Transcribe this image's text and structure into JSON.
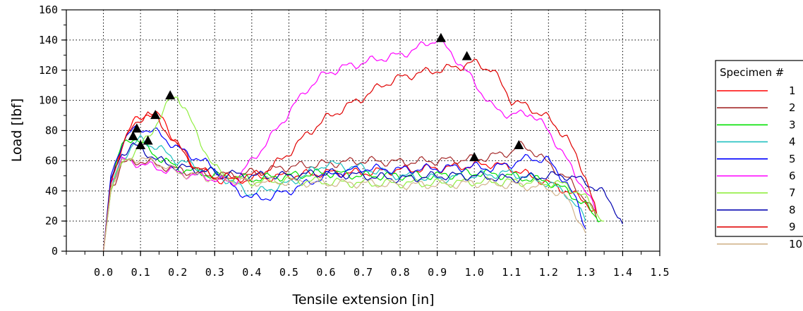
{
  "chart_data": {
    "type": "line",
    "title": "",
    "xlabel": "Tensile extension [in]",
    "ylabel": "Load [lbf]",
    "xlim": [
      -0.1,
      1.5
    ],
    "ylim": [
      0,
      160
    ],
    "x_ticks": [
      "0.0",
      "0.1",
      "0.2",
      "0.3",
      "0.4",
      "0.5",
      "0.6",
      "0.7",
      "0.8",
      "0.9",
      "1.0",
      "1.1",
      "1.2",
      "1.3",
      "1.4",
      "1.5"
    ],
    "y_ticks": [
      "0",
      "20",
      "40",
      "60",
      "80",
      "100",
      "120",
      "140",
      "160"
    ],
    "grid": true,
    "legend": {
      "title": "Specimen #",
      "position": "right"
    },
    "series": [
      {
        "name": "1",
        "color": "#ff0000",
        "points": [
          [
            0,
            0
          ],
          [
            0.02,
            45
          ],
          [
            0.05,
            72
          ],
          [
            0.08,
            85
          ],
          [
            0.12,
            92
          ],
          [
            0.16,
            88
          ],
          [
            0.2,
            70
          ],
          [
            0.25,
            55
          ],
          [
            0.3,
            48
          ],
          [
            0.35,
            47
          ],
          [
            0.4,
            48
          ],
          [
            0.5,
            50
          ],
          [
            0.6,
            52
          ],
          [
            0.7,
            52
          ],
          [
            0.8,
            54
          ],
          [
            0.9,
            55
          ],
          [
            1.0,
            57
          ],
          [
            1.05,
            58
          ],
          [
            1.1,
            55
          ],
          [
            1.15,
            50
          ],
          [
            1.2,
            45
          ],
          [
            1.25,
            40
          ],
          [
            1.3,
            33
          ],
          [
            1.33,
            25
          ]
        ],
        "break": [
          1.0,
          62
        ]
      },
      {
        "name": "2",
        "color": "#a52a2a",
        "points": [
          [
            0,
            0
          ],
          [
            0.02,
            40
          ],
          [
            0.05,
            58
          ],
          [
            0.1,
            60
          ],
          [
            0.15,
            57
          ],
          [
            0.2,
            54
          ],
          [
            0.3,
            50
          ],
          [
            0.4,
            52
          ],
          [
            0.5,
            56
          ],
          [
            0.6,
            58
          ],
          [
            0.7,
            60
          ],
          [
            0.8,
            59
          ],
          [
            0.9,
            60
          ],
          [
            1.0,
            61
          ],
          [
            1.05,
            63
          ],
          [
            1.1,
            66
          ],
          [
            1.12,
            70
          ],
          [
            1.15,
            68
          ],
          [
            1.2,
            58
          ],
          [
            1.25,
            48
          ],
          [
            1.3,
            35
          ],
          [
            1.33,
            22
          ]
        ],
        "break": [
          1.12,
          70
        ]
      },
      {
        "name": "3",
        "color": "#00e000",
        "points": [
          [
            0,
            0
          ],
          [
            0.02,
            45
          ],
          [
            0.05,
            70
          ],
          [
            0.08,
            76
          ],
          [
            0.1,
            72
          ],
          [
            0.15,
            62
          ],
          [
            0.2,
            55
          ],
          [
            0.3,
            50
          ],
          [
            0.4,
            48
          ],
          [
            0.5,
            50
          ],
          [
            0.6,
            52
          ],
          [
            0.7,
            50
          ],
          [
            0.8,
            50
          ],
          [
            0.9,
            50
          ],
          [
            1.0,
            52
          ],
          [
            1.1,
            50
          ],
          [
            1.2,
            46
          ],
          [
            1.25,
            40
          ],
          [
            1.3,
            30
          ],
          [
            1.34,
            20
          ]
        ],
        "break": [
          0.1,
          70
        ]
      },
      {
        "name": "4",
        "color": "#20c0c0",
        "points": [
          [
            0,
            0
          ],
          [
            0.02,
            42
          ],
          [
            0.05,
            62
          ],
          [
            0.08,
            70
          ],
          [
            0.1,
            74
          ],
          [
            0.15,
            68
          ],
          [
            0.2,
            60
          ],
          [
            0.3,
            52
          ],
          [
            0.4,
            38
          ],
          [
            0.5,
            45
          ],
          [
            0.6,
            58
          ],
          [
            0.7,
            55
          ],
          [
            0.8,
            50
          ],
          [
            0.9,
            48
          ],
          [
            1.0,
            50
          ],
          [
            1.1,
            52
          ],
          [
            1.2,
            45
          ],
          [
            1.25,
            38
          ],
          [
            1.28,
            28
          ],
          [
            1.3,
            20
          ]
        ],
        "break": [
          0.12,
          73
        ]
      },
      {
        "name": "5",
        "color": "#0000ff",
        "points": [
          [
            0,
            0
          ],
          [
            0.02,
            50
          ],
          [
            0.05,
            72
          ],
          [
            0.08,
            80
          ],
          [
            0.1,
            82
          ],
          [
            0.15,
            78
          ],
          [
            0.2,
            68
          ],
          [
            0.25,
            62
          ],
          [
            0.3,
            55
          ],
          [
            0.35,
            42
          ],
          [
            0.4,
            35
          ],
          [
            0.45,
            36
          ],
          [
            0.5,
            40
          ],
          [
            0.6,
            50
          ],
          [
            0.7,
            55
          ],
          [
            0.8,
            54
          ],
          [
            0.9,
            55
          ],
          [
            1.0,
            56
          ],
          [
            1.05,
            55
          ],
          [
            1.1,
            58
          ],
          [
            1.15,
            62
          ],
          [
            1.2,
            60
          ],
          [
            1.25,
            45
          ],
          [
            1.28,
            30
          ],
          [
            1.3,
            15
          ]
        ],
        "break": [
          0.09,
          81
        ]
      },
      {
        "name": "6",
        "color": "#ff00ff",
        "points": [
          [
            0,
            0
          ],
          [
            0.02,
            45
          ],
          [
            0.05,
            60
          ],
          [
            0.1,
            58
          ],
          [
            0.15,
            55
          ],
          [
            0.2,
            52
          ],
          [
            0.3,
            48
          ],
          [
            0.35,
            45
          ],
          [
            0.4,
            60
          ],
          [
            0.45,
            75
          ],
          [
            0.5,
            92
          ],
          [
            0.55,
            108
          ],
          [
            0.6,
            118
          ],
          [
            0.65,
            122
          ],
          [
            0.7,
            125
          ],
          [
            0.75,
            128
          ],
          [
            0.8,
            130
          ],
          [
            0.85,
            135
          ],
          [
            0.9,
            141
          ],
          [
            0.95,
            128
          ],
          [
            1.0,
            112
          ],
          [
            1.05,
            95
          ],
          [
            1.1,
            90
          ],
          [
            1.15,
            92
          ],
          [
            1.2,
            80
          ],
          [
            1.25,
            60
          ],
          [
            1.3,
            40
          ],
          [
            1.33,
            25
          ]
        ],
        "break": [
          0.91,
          141
        ]
      },
      {
        "name": "7",
        "color": "#90ee40",
        "points": [
          [
            0,
            0
          ],
          [
            0.02,
            40
          ],
          [
            0.05,
            58
          ],
          [
            0.08,
            65
          ],
          [
            0.12,
            75
          ],
          [
            0.15,
            88
          ],
          [
            0.18,
            100
          ],
          [
            0.2,
            103
          ],
          [
            0.22,
            95
          ],
          [
            0.25,
            78
          ],
          [
            0.3,
            55
          ],
          [
            0.35,
            48
          ],
          [
            0.4,
            46
          ],
          [
            0.5,
            47
          ],
          [
            0.6,
            46
          ],
          [
            0.7,
            45
          ],
          [
            0.8,
            45
          ],
          [
            0.9,
            45
          ],
          [
            1.0,
            46
          ],
          [
            1.1,
            46
          ],
          [
            1.2,
            45
          ],
          [
            1.25,
            44
          ],
          [
            1.3,
            35
          ],
          [
            1.35,
            20
          ]
        ],
        "break": [
          0.18,
          103
        ]
      },
      {
        "name": "8",
        "color": "#0000b0",
        "points": [
          [
            0,
            0
          ],
          [
            0.02,
            48
          ],
          [
            0.05,
            65
          ],
          [
            0.08,
            70
          ],
          [
            0.1,
            68
          ],
          [
            0.15,
            60
          ],
          [
            0.2,
            56
          ],
          [
            0.3,
            52
          ],
          [
            0.4,
            50
          ],
          [
            0.5,
            50
          ],
          [
            0.6,
            52
          ],
          [
            0.7,
            50
          ],
          [
            0.8,
            48
          ],
          [
            0.9,
            50
          ],
          [
            1.0,
            50
          ],
          [
            1.1,
            48
          ],
          [
            1.2,
            50
          ],
          [
            1.25,
            50
          ],
          [
            1.3,
            46
          ],
          [
            1.35,
            38
          ],
          [
            1.38,
            28
          ],
          [
            1.4,
            18
          ]
        ],
        "break": [
          0.08,
          76
        ]
      },
      {
        "name": "9",
        "color": "#e00000",
        "points": [
          [
            0,
            0
          ],
          [
            0.02,
            45
          ],
          [
            0.05,
            70
          ],
          [
            0.08,
            82
          ],
          [
            0.1,
            88
          ],
          [
            0.12,
            92
          ],
          [
            0.15,
            86
          ],
          [
            0.2,
            70
          ],
          [
            0.25,
            55
          ],
          [
            0.3,
            50
          ],
          [
            0.35,
            48
          ],
          [
            0.4,
            50
          ],
          [
            0.45,
            55
          ],
          [
            0.5,
            65
          ],
          [
            0.55,
            78
          ],
          [
            0.6,
            88
          ],
          [
            0.65,
            95
          ],
          [
            0.7,
            102
          ],
          [
            0.75,
            110
          ],
          [
            0.8,
            115
          ],
          [
            0.85,
            118
          ],
          [
            0.9,
            120
          ],
          [
            0.95,
            122
          ],
          [
            1.0,
            125
          ],
          [
            1.05,
            120
          ],
          [
            1.1,
            100
          ],
          [
            1.15,
            95
          ],
          [
            1.2,
            88
          ],
          [
            1.25,
            75
          ],
          [
            1.3,
            50
          ],
          [
            1.33,
            25
          ]
        ],
        "break": [
          0.98,
          129
        ]
      },
      {
        "name": "10",
        "color": "#d2b48c",
        "points": [
          [
            0,
            0
          ],
          [
            0.02,
            42
          ],
          [
            0.05,
            58
          ],
          [
            0.08,
            62
          ],
          [
            0.12,
            60
          ],
          [
            0.15,
            58
          ],
          [
            0.2,
            52
          ],
          [
            0.3,
            48
          ],
          [
            0.4,
            46
          ],
          [
            0.5,
            46
          ],
          [
            0.6,
            45
          ],
          [
            0.7,
            45
          ],
          [
            0.8,
            44
          ],
          [
            0.9,
            44
          ],
          [
            1.0,
            45
          ],
          [
            1.1,
            44
          ],
          [
            1.2,
            42
          ],
          [
            1.25,
            35
          ],
          [
            1.28,
            22
          ],
          [
            1.3,
            12
          ]
        ],
        "break": [
          0.14,
          90
        ]
      }
    ]
  }
}
